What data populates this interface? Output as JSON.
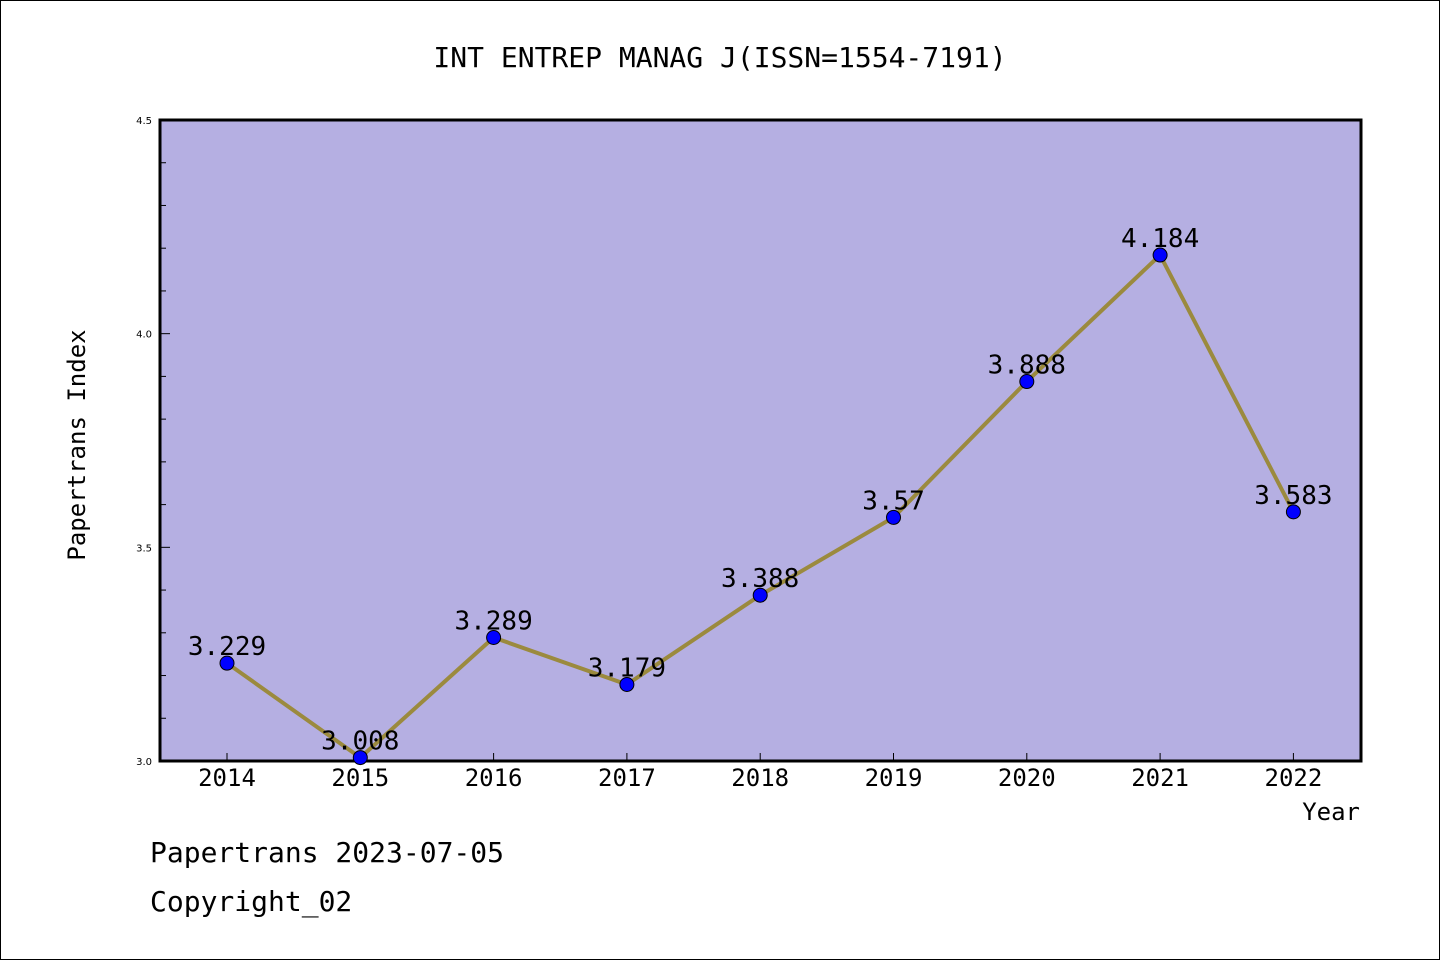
{
  "chart_data": {
    "type": "line",
    "title": "INT ENTREP MANAG J(ISSN=1554-7191)",
    "xlabel": "Year",
    "ylabel": "Papertrans Index",
    "categories": [
      "2014",
      "2015",
      "2016",
      "2017",
      "2018",
      "2019",
      "2020",
      "2021",
      "2022"
    ],
    "series": [
      {
        "values": [
          3.229,
          3.008,
          3.289,
          3.179,
          3.388,
          3.57,
          3.888,
          4.184,
          3.583
        ],
        "labels": [
          "3.229",
          "3.008",
          "3.289",
          "3.179",
          "3.388",
          "3.57",
          "3.888",
          "4.184",
          "3.583"
        ]
      }
    ],
    "ylim": [
      3.0,
      4.5
    ],
    "yticks": [
      "3.0",
      "3.5",
      "4.0",
      "4.5"
    ],
    "grid": false,
    "colors": {
      "plot_background": "#b5afe2",
      "line": "#9b8a3e",
      "marker": "#0000ff",
      "axes": "#000000"
    }
  },
  "footer": {
    "date_text": "Papertrans 2023-07-05",
    "copyright_text": "Copyright_02"
  }
}
